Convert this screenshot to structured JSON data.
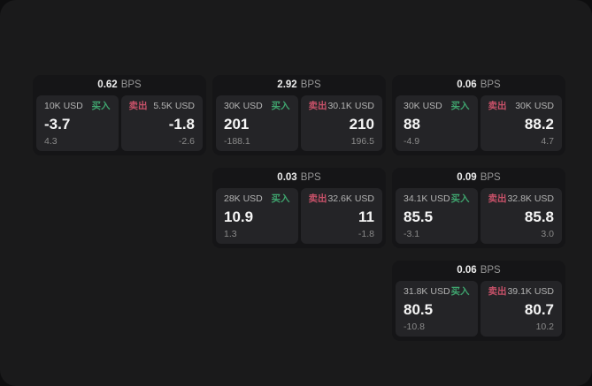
{
  "labels": {
    "bps": "BPS",
    "buy": "买入",
    "sell": "卖出"
  },
  "colors": {
    "background_outer": "#0e0e0f",
    "background_panel": "#1a1a1b",
    "card_background": "#151517",
    "tile_background": "#242427",
    "buy_green": "#3fa46e",
    "sell_red": "#c75169",
    "value_white": "#f5f5f5",
    "amount_gray": "#b3b3b3",
    "muted_gray": "#8a8a8a"
  },
  "cards": [
    {
      "bps": "0.62",
      "buy": {
        "amount": "10K USD",
        "value": "-3.7",
        "delta": "4.3"
      },
      "sell": {
        "amount": "5.5K USD",
        "value": "-1.8",
        "delta": "-2.6"
      }
    },
    {
      "bps": "2.92",
      "buy": {
        "amount": "30K USD",
        "value": "201",
        "delta": "-188.1"
      },
      "sell": {
        "amount": "30.1K USD",
        "value": "210",
        "delta": "196.5"
      }
    },
    {
      "bps": "0.06",
      "buy": {
        "amount": "30K USD",
        "value": "88",
        "delta": "-4.9"
      },
      "sell": {
        "amount": "30K USD",
        "value": "88.2",
        "delta": "4.7"
      }
    },
    {
      "bps": "0.03",
      "buy": {
        "amount": "28K USD",
        "value": "10.9",
        "delta": "1.3"
      },
      "sell": {
        "amount": "32.6K USD",
        "value": "11",
        "delta": "-1.8"
      }
    },
    {
      "bps": "0.09",
      "buy": {
        "amount": "34.1K USD",
        "value": "85.5",
        "delta": "-3.1"
      },
      "sell": {
        "amount": "32.8K USD",
        "value": "85.8",
        "delta": "3.0"
      }
    },
    {
      "bps": "0.06",
      "buy": {
        "amount": "31.8K USD",
        "value": "80.5",
        "delta": "-10.8"
      },
      "sell": {
        "amount": "39.1K USD",
        "value": "80.7",
        "delta": "10.2"
      }
    }
  ]
}
